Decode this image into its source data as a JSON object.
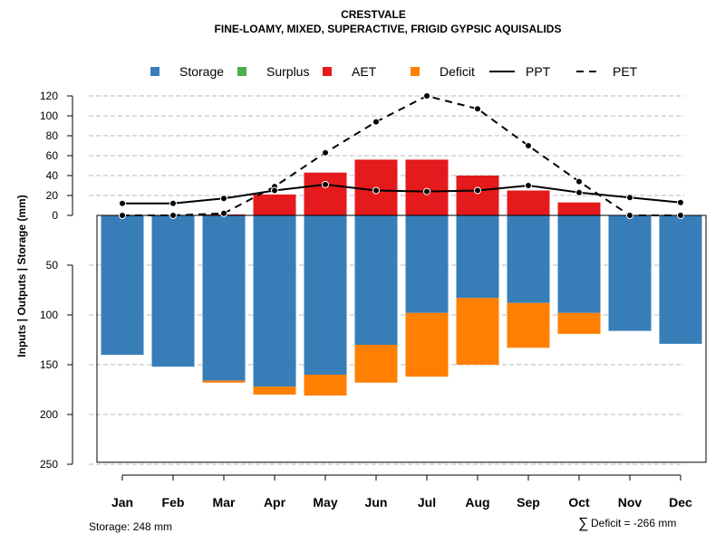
{
  "chart_data": {
    "type": "bar",
    "title": "CRESTVALE",
    "subtitle": "FINE-LOAMY, MIXED, SUPERACTIVE, FRIGID GYPSIC AQUISALIDS",
    "ylabel": "Inputs | Outputs | Storage     (mm)",
    "categories": [
      "Jan",
      "Feb",
      "Mar",
      "Apr",
      "May",
      "Jun",
      "Jul",
      "Aug",
      "Sep",
      "Oct",
      "Nov",
      "Dec"
    ],
    "upper_axis": {
      "ylim": [
        0,
        120
      ],
      "ticks": [
        0,
        20,
        40,
        60,
        80,
        100,
        120
      ],
      "tick_labels": [
        "0",
        "20",
        "40",
        "60",
        "80",
        "100",
        "120"
      ]
    },
    "lower_axis": {
      "ylim": [
        0,
        250
      ],
      "ticks": [
        50,
        100,
        150,
        200,
        250
      ],
      "tick_labels": [
        "50",
        "100",
        "150",
        "200",
        "250"
      ]
    },
    "series": [
      {
        "name": "Storage",
        "color": "#377EB8",
        "axis": "lower",
        "values": [
          140,
          152,
          166,
          172,
          160,
          130,
          98,
          83,
          88,
          98,
          116,
          129
        ]
      },
      {
        "name": "Surplus",
        "color": "#4DAF4A",
        "axis": "upper",
        "values": [
          0,
          0,
          0,
          0,
          0,
          0,
          0,
          0,
          0,
          0,
          0,
          0
        ]
      },
      {
        "name": "AET",
        "color": "#E41A1C",
        "axis": "upper",
        "values": [
          0,
          0,
          1,
          21,
          43,
          56,
          56,
          40,
          25,
          13,
          0,
          0
        ]
      },
      {
        "name": "Deficit",
        "color": "#FF7F00",
        "axis": "lower",
        "values": [
          0,
          0,
          2,
          8,
          21,
          38,
          64,
          67,
          45,
          21,
          0,
          0
        ]
      },
      {
        "name": "PPT",
        "color": "#000000",
        "line": "solid",
        "axis": "upper",
        "values": [
          12,
          12,
          17,
          25,
          31,
          25,
          24,
          25,
          30,
          23,
          18,
          13
        ]
      },
      {
        "name": "PET",
        "color": "#000000",
        "line": "dashed",
        "axis": "upper",
        "values": [
          0,
          0,
          2,
          29,
          63,
          94,
          120,
          107,
          70,
          34,
          0,
          0
        ]
      }
    ],
    "legend": [
      {
        "name": "Storage",
        "symbol": "square",
        "color": "#377EB8"
      },
      {
        "name": "Surplus",
        "symbol": "square",
        "color": "#4DAF4A"
      },
      {
        "name": "AET",
        "symbol": "square",
        "color": "#E41A1C"
      },
      {
        "name": "Deficit",
        "symbol": "square",
        "color": "#FF7F00"
      },
      {
        "name": "PPT",
        "symbol": "solid-line",
        "color": "#000000"
      },
      {
        "name": "PET",
        "symbol": "dashed-line",
        "color": "#000000"
      }
    ],
    "legend_position": "top",
    "storage_total": 248,
    "grid": true
  },
  "footer": {
    "storage_note": "Storage: 248 mm",
    "deficit_symbol": "∑",
    "deficit_note": "Deficit = -266 mm"
  }
}
